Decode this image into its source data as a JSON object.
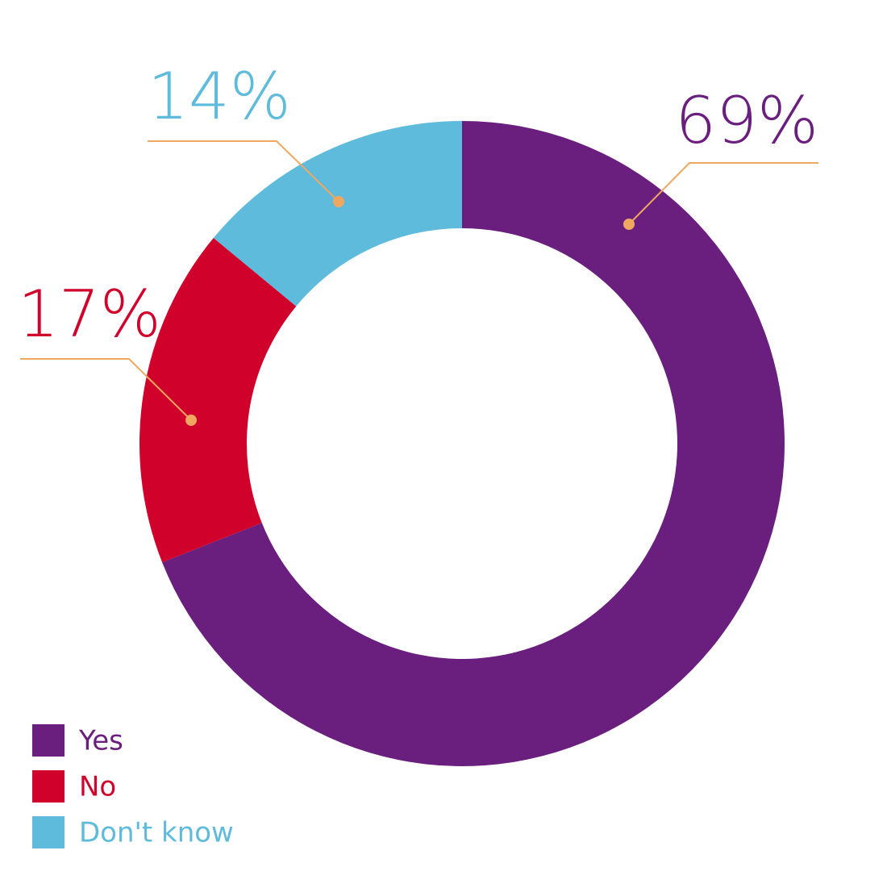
{
  "chart_data": {
    "type": "donut",
    "categories": [
      "Yes",
      "No",
      "Don't know"
    ],
    "values": [
      69,
      17,
      14
    ],
    "value_labels": [
      "69%",
      "17%",
      "14%"
    ],
    "colors": [
      "#6a1e7e",
      "#d0022b",
      "#5ebbdb"
    ],
    "legend": "bottom-left"
  }
}
